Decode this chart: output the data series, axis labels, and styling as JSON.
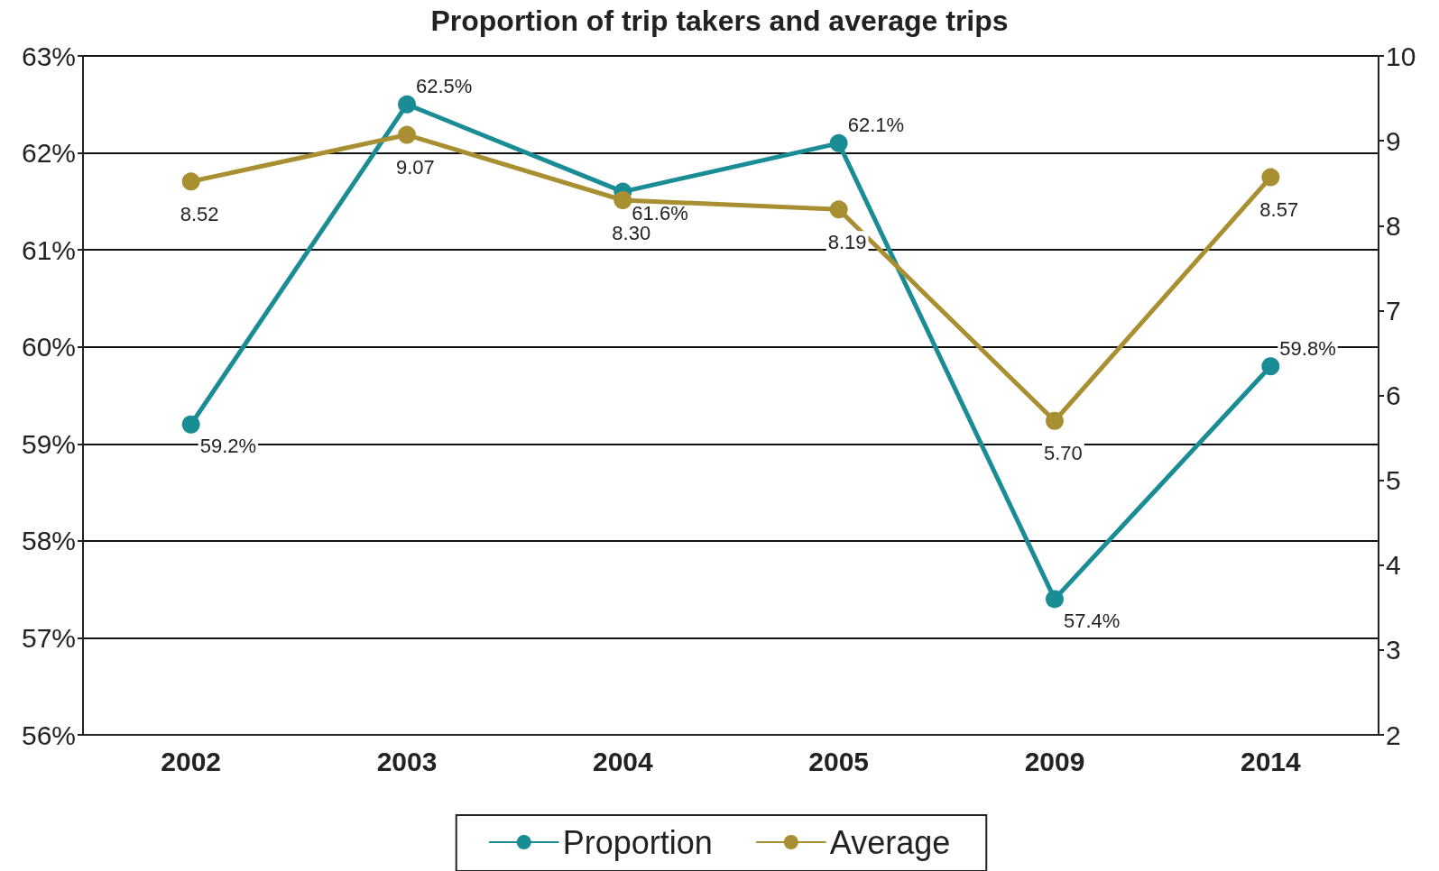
{
  "chart_data": {
    "type": "line",
    "title": "Proportion of trip takers and average trips",
    "categories": [
      "2002",
      "2003",
      "2004",
      "2005",
      "2009",
      "2014"
    ],
    "series": [
      {
        "name": "Proportion",
        "color": "#1a8c96",
        "values": [
          59.2,
          62.5,
          61.6,
          62.1,
          57.4,
          59.8
        ],
        "value_labels": [
          "59.2%",
          "62.5%",
          "61.6%",
          "62.1%",
          "57.4%",
          "59.8%"
        ]
      },
      {
        "name": "Average",
        "color": "#a89032",
        "axis": "y2",
        "values": [
          8.52,
          9.07,
          8.3,
          8.19,
          5.7,
          8.57
        ],
        "value_labels": [
          "8.52",
          "9.07",
          "8.30",
          "8.19",
          "5.70",
          "8.57"
        ]
      }
    ],
    "ylim": [
      56,
      63
    ],
    "yticks": [
      {
        "value": 56,
        "label": "56%"
      },
      {
        "value": 57,
        "label": "57%"
      },
      {
        "value": 58,
        "label": "58%"
      },
      {
        "value": 59,
        "label": "59%"
      },
      {
        "value": 60,
        "label": "60%"
      },
      {
        "value": 61,
        "label": "61%"
      },
      {
        "value": 62,
        "label": "62%"
      },
      {
        "value": 63,
        "label": "63%"
      }
    ],
    "y2lim": [
      2,
      10
    ],
    "y2ticks": [
      2,
      3,
      4,
      5,
      6,
      7,
      8,
      9,
      10
    ],
    "grid": "y",
    "legend": "bottom",
    "marker": "circle",
    "line_style": "solid"
  }
}
